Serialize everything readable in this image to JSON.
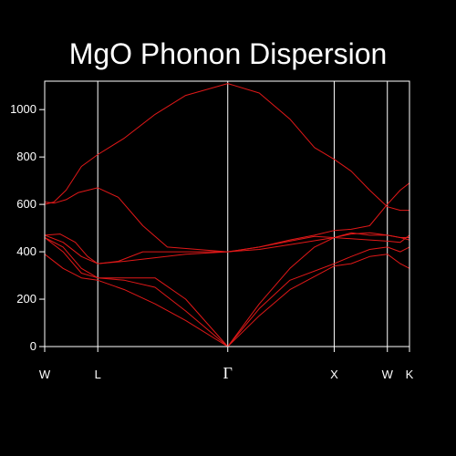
{
  "chart_data": {
    "type": "line",
    "title": "MgO Phonon Dispersion",
    "xlabel": "",
    "ylabel": "",
    "ylim": [
      0,
      1120
    ],
    "y_ticks": [
      0,
      200,
      400,
      600,
      800,
      1000
    ],
    "k_points": [
      {
        "label": "W",
        "x": 0.0
      },
      {
        "label": "L",
        "x": 0.866
      },
      {
        "label": "Γ",
        "x": 2.986
      },
      {
        "label": "X",
        "x": 4.722
      },
      {
        "label": "W",
        "x": 5.589
      },
      {
        "label": "K",
        "x": 5.95
      }
    ],
    "xlim": [
      0,
      5.95
    ],
    "line_color": "#e01818",
    "axis_color": "#ffffff",
    "background": "#000000",
    "series": [
      {
        "x": [
          0,
          0.15,
          0.35,
          0.6,
          0.866,
          1.3,
          1.8,
          2.3,
          2.986,
          3.5,
          4.0,
          4.4,
          4.722,
          5.0,
          5.3,
          5.589,
          5.8,
          5.95
        ],
        "y": [
          600,
          610,
          660,
          760,
          810,
          880,
          980,
          1060,
          1110,
          1070,
          960,
          840,
          790,
          740,
          660,
          590,
          575,
          575
        ]
      },
      {
        "x": [
          0,
          0.15,
          0.35,
          0.55,
          0.866,
          1.2,
          1.6,
          2.0,
          2.986,
          3.5,
          4.0,
          4.4,
          4.722,
          5.0,
          5.3,
          5.589,
          5.8,
          5.95
        ],
        "y": [
          610,
          605,
          620,
          650,
          670,
          630,
          510,
          420,
          400,
          420,
          450,
          470,
          490,
          495,
          510,
          600,
          660,
          690
        ]
      },
      {
        "x": [
          0,
          0.3,
          0.6,
          0.866,
          1.3,
          1.8,
          2.3,
          2.986,
          3.5,
          4.0,
          4.722,
          5.0,
          5.3,
          5.589,
          5.8,
          5.95
        ],
        "y": [
          470,
          440,
          380,
          350,
          360,
          375,
          390,
          400,
          410,
          430,
          460,
          475,
          480,
          470,
          460,
          460
        ]
      },
      {
        "x": [
          0,
          0.25,
          0.5,
          0.7,
          0.866,
          1.2,
          1.6,
          2.986,
          3.5,
          4.0,
          4.4,
          4.722,
          5.0,
          5.3,
          5.589,
          5.8,
          5.95
        ],
        "y": [
          470,
          475,
          440,
          380,
          350,
          360,
          400,
          400,
          420,
          445,
          465,
          460,
          455,
          450,
          445,
          440,
          470
        ]
      },
      {
        "x": [
          0,
          0.3,
          0.6,
          0.866,
          1.3,
          1.8,
          2.3,
          2.986,
          3.5,
          4.0,
          4.4,
          4.722,
          5.0,
          5.3,
          5.589,
          5.8,
          5.95
        ],
        "y": [
          460,
          420,
          330,
          290,
          280,
          250,
          150,
          0,
          180,
          330,
          420,
          460,
          480,
          470,
          470,
          460,
          450
        ]
      },
      {
        "x": [
          0,
          0.3,
          0.6,
          0.866,
          1.3,
          1.8,
          2.3,
          2.986,
          3.5,
          4.0,
          4.722,
          5.0,
          5.3,
          5.589,
          5.8,
          5.95
        ],
        "y": [
          390,
          330,
          290,
          280,
          240,
          180,
          110,
          0,
          130,
          240,
          340,
          350,
          380,
          390,
          350,
          330
        ]
      },
      {
        "x": [
          0,
          0.3,
          0.6,
          0.866,
          1.3,
          1.8,
          2.3,
          2.986,
          3.5,
          4.0,
          4.722,
          5.0,
          5.3,
          5.589,
          5.8,
          5.95
        ],
        "y": [
          460,
          400,
          310,
          290,
          290,
          290,
          200,
          0,
          160,
          280,
          350,
          380,
          410,
          420,
          400,
          420
        ]
      }
    ]
  }
}
